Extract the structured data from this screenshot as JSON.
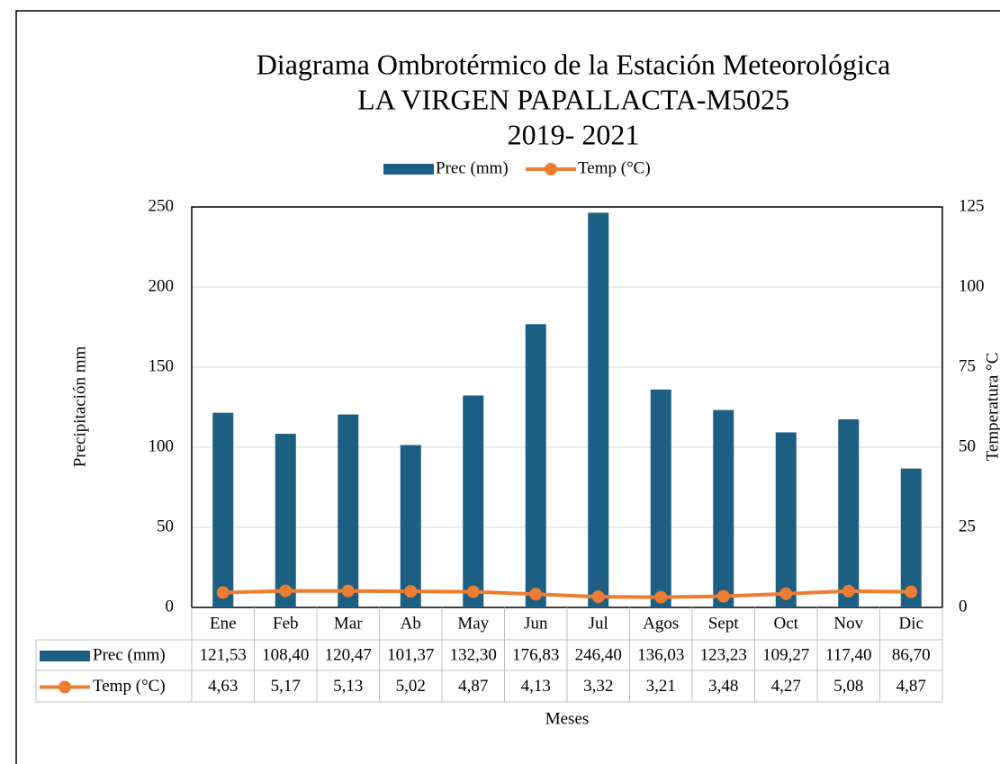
{
  "chart_data": {
    "type": "bar_line",
    "title": [
      "Diagrama Ombrotérmico de la Estación Meteorológica",
      "LA VIRGEN PAPALLACTA-M5025",
      "2019- 2021"
    ],
    "x_label": "Meses",
    "y_label": "Precipitación mm",
    "y2_label": "Temperatura °C",
    "categories": [
      "Ene",
      "Feb",
      "Mar",
      "Ab",
      "May",
      "Jun",
      "Jul",
      "Agos",
      "Sept",
      "Oct",
      "Nov",
      "Dic"
    ],
    "series": [
      {
        "name": "Prec (mm)",
        "type": "bar",
        "color": "#1c5f83",
        "values": [
          121.53,
          108.4,
          120.47,
          101.37,
          132.3,
          176.83,
          246.4,
          136.03,
          123.23,
          109.27,
          117.4,
          86.7
        ],
        "value_labels": [
          "121,53",
          "108,40",
          "120,47",
          "101,37",
          "132,30",
          "176,83",
          "246,40",
          "136,03",
          "123,23",
          "109,27",
          "117,40",
          "86,70"
        ]
      },
      {
        "name": "Temp (°C)",
        "type": "line",
        "axis": "y2",
        "color": "#ed7d31",
        "values": [
          4.63,
          5.17,
          5.13,
          5.02,
          4.87,
          4.13,
          3.32,
          3.21,
          3.48,
          4.27,
          5.08,
          4.87
        ],
        "value_labels": [
          "4,63",
          "5,17",
          "5,13",
          "5,02",
          "4,87",
          "4,13",
          "3,32",
          "3,21",
          "3,48",
          "4,27",
          "5,08",
          "4,87"
        ]
      }
    ],
    "ylim": [
      0,
      250
    ],
    "yticks": [
      0,
      50,
      100,
      150,
      200,
      250
    ],
    "y2lim": [
      0,
      125
    ],
    "y2ticks": [
      0,
      25,
      50,
      75,
      100,
      125
    ],
    "grid": true,
    "legend": "top",
    "data_table": true
  }
}
